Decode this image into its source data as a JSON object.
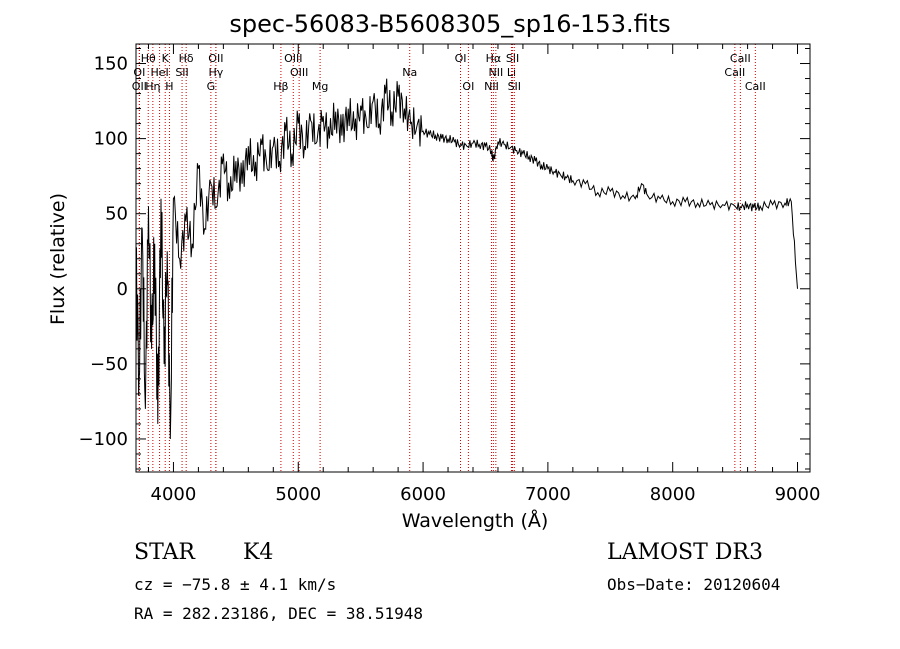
{
  "chart_data": {
    "type": "line",
    "title": "spec-56083-B5608305_sp16-153.fits",
    "xlabel": "Wavelength (Å)",
    "ylabel": "Flux (relative)",
    "xlim": [
      3700,
      9100
    ],
    "ylim": [
      -122,
      163
    ],
    "xticks": [
      4000,
      5000,
      6000,
      7000,
      8000,
      9000
    ],
    "yticks": [
      -100,
      -50,
      0,
      50,
      100,
      150
    ],
    "grid": false,
    "series": [
      {
        "name": "spectrum",
        "x": [
          3700,
          3725,
          3750,
          3775,
          3800,
          3825,
          3850,
          3875,
          3900,
          3925,
          3950,
          3975,
          4000,
          4050,
          4100,
          4150,
          4200,
          4250,
          4300,
          4350,
          4400,
          4450,
          4500,
          4550,
          4600,
          4650,
          4700,
          4750,
          4800,
          4850,
          4900,
          4950,
          5000,
          5050,
          5100,
          5150,
          5200,
          5250,
          5300,
          5350,
          5400,
          5450,
          5500,
          5550,
          5600,
          5650,
          5700,
          5750,
          5800,
          5850,
          5900,
          5950,
          6000,
          6050,
          6100,
          6150,
          6200,
          6250,
          6300,
          6350,
          6400,
          6450,
          6500,
          6550,
          6560,
          6600,
          6650,
          6700,
          6750,
          6800,
          6850,
          6900,
          6950,
          7000,
          7050,
          7100,
          7150,
          7200,
          7300,
          7400,
          7500,
          7600,
          7700,
          7750,
          7800,
          7900,
          8000,
          8100,
          8200,
          8300,
          8400,
          8500,
          8550,
          8600,
          8650,
          8700,
          8800,
          8900,
          8950,
          9000
        ],
        "y": [
          20,
          -60,
          40,
          -80,
          55,
          -40,
          30,
          -90,
          60,
          -50,
          25,
          -100,
          60,
          20,
          45,
          30,
          80,
          40,
          70,
          55,
          90,
          60,
          85,
          70,
          95,
          75,
          100,
          80,
          95,
          85,
          105,
          90,
          110,
          95,
          112,
          98,
          115,
          100,
          118,
          102,
          120,
          105,
          122,
          108,
          125,
          110,
          130,
          118,
          128,
          120,
          110,
          108,
          105,
          103,
          102,
          100,
          100,
          98,
          96,
          95,
          97,
          96,
          95,
          92,
          85,
          98,
          96,
          94,
          92,
          90,
          88,
          85,
          82,
          80,
          78,
          76,
          74,
          72,
          70,
          64,
          65,
          62,
          60,
          70,
          62,
          60,
          58,
          58,
          57,
          56,
          56,
          55,
          54,
          56,
          54,
          55,
          56,
          57,
          58,
          0
        ]
      }
    ],
    "lines": [
      {
        "label": "Hθ",
        "x": 3798,
        "row": 1
      },
      {
        "label": "K",
        "x": 3934,
        "row": 1
      },
      {
        "label": "Hδ",
        "x": 4102,
        "row": 1
      },
      {
        "label": "OII",
        "x": 4340,
        "row": 1
      },
      {
        "label": "OIII",
        "x": 4960,
        "row": 1
      },
      {
        "label": "OI",
        "x": 6300,
        "row": 1
      },
      {
        "label": "Hα",
        "x": 6563,
        "row": 1
      },
      {
        "label": "SII",
        "x": 6717,
        "row": 1
      },
      {
        "label": "CaII",
        "x": 8542,
        "row": 1
      },
      {
        "label": "OI",
        "x": 3727,
        "row": 2
      },
      {
        "label": "HeI",
        "x": 3889,
        "row": 2
      },
      {
        "label": "SII",
        "x": 4069,
        "row": 2
      },
      {
        "label": "Hγ",
        "x": 4340,
        "row": 2
      },
      {
        "label": "OIII",
        "x": 5007,
        "row": 2
      },
      {
        "label": "Na",
        "x": 5893,
        "row": 2
      },
      {
        "label": "NII",
        "x": 6583,
        "row": 2
      },
      {
        "label": "Li",
        "x": 6708,
        "row": 2
      },
      {
        "label": "CaII",
        "x": 8498,
        "row": 2
      },
      {
        "label": "OII",
        "x": 3727,
        "row": 3
      },
      {
        "label": "Hη",
        "x": 3835,
        "row": 3
      },
      {
        "label": "H",
        "x": 3968,
        "row": 3
      },
      {
        "label": "G",
        "x": 4300,
        "row": 3
      },
      {
        "label": "Hβ",
        "x": 4861,
        "row": 3
      },
      {
        "label": "Mg",
        "x": 5175,
        "row": 3
      },
      {
        "label": "OI",
        "x": 6363,
        "row": 3
      },
      {
        "label": "NII",
        "x": 6548,
        "row": 3
      },
      {
        "label": "SII",
        "x": 6731,
        "row": 3
      },
      {
        "label": "CaII",
        "x": 8662,
        "row": 3
      }
    ],
    "line_color": "#cc0000",
    "spectrum_color": "#000000"
  },
  "info": {
    "class": "STAR",
    "subclass": "K4",
    "survey": "LAMOST DR3",
    "cz": "cz = −75.8 ± 4.1 km/s",
    "obs_date": "Obs−Date: 20120604",
    "coords": "RA = 282.23186, DEC =  38.51948"
  }
}
